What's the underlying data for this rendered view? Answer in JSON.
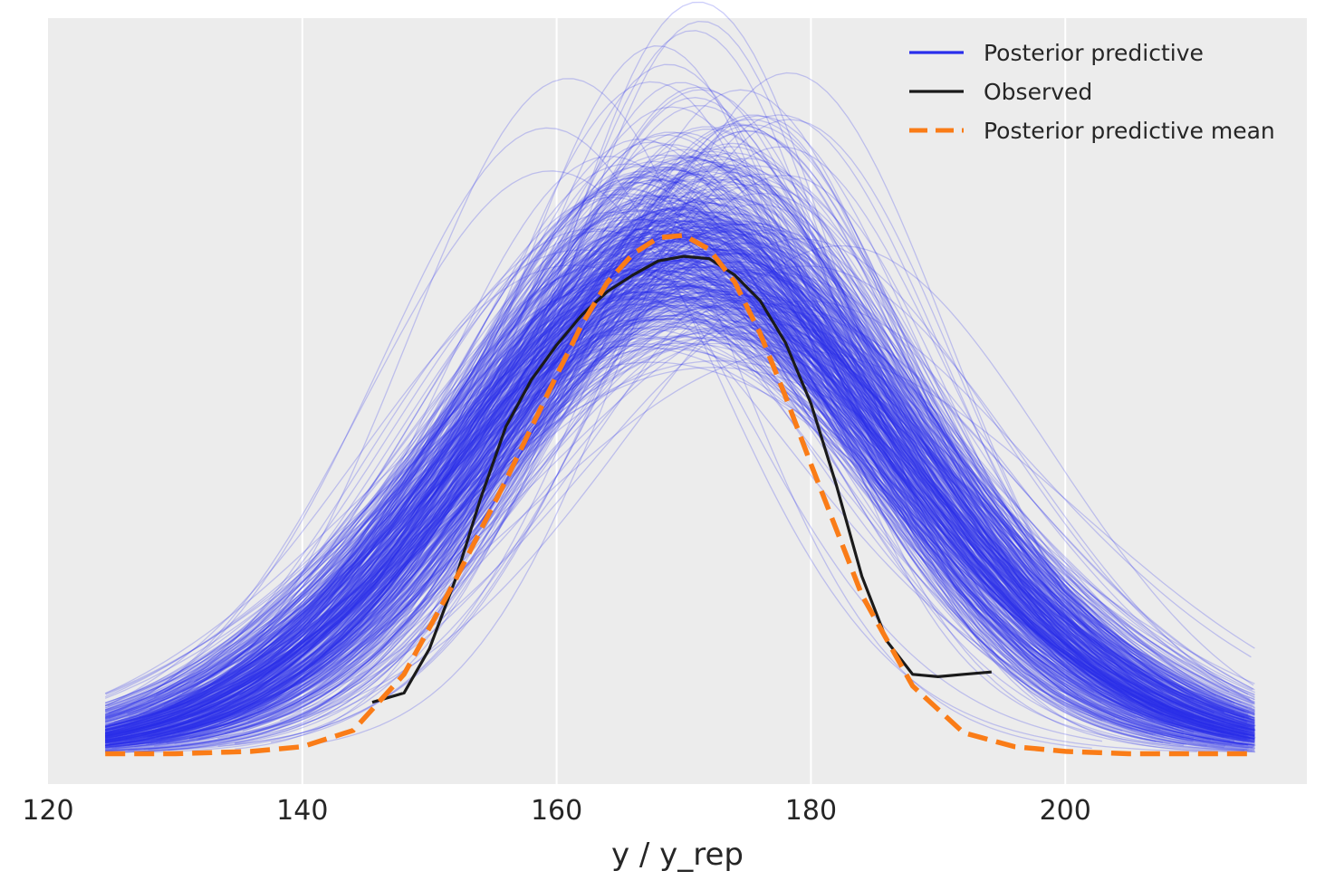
{
  "chart_data": {
    "type": "line",
    "title": "",
    "xlabel": "y / y_rep",
    "ylabel": "",
    "xlim": [
      120,
      219
    ],
    "ylim": [
      -0.0013,
      0.0315
    ],
    "x_ticks": [
      120,
      140,
      160,
      180,
      200
    ],
    "x_tick_labels": [
      "120",
      "140",
      "160",
      "180",
      "200"
    ],
    "y_ticks_visible": false,
    "grid": "vertical gridlines only",
    "background": "#ececec",
    "legend_position": "top-right",
    "legend": [
      {
        "label": "Posterior predictive",
        "style": "solid",
        "color": "#2a2eec"
      },
      {
        "label": "Observed",
        "style": "solid",
        "color": "#1a1a1a"
      },
      {
        "label": "Posterior predictive mean",
        "style": "dashed",
        "color": "#fa7c17"
      }
    ],
    "series": [
      {
        "name": "Posterior predictive",
        "kind": "kde_draws_ensemble",
        "color": "#2a2eec",
        "draws": 500,
        "x_range": [
          124.5,
          215
        ],
        "peak_x_range": [
          164,
          176
        ],
        "peak_density_range": [
          0.018,
          0.029
        ]
      },
      {
        "name": "Observed",
        "color": "#1a1a1a",
        "x": [
          145.5,
          148,
          150,
          152,
          154,
          156,
          158,
          160,
          162,
          164,
          166,
          168,
          170,
          172,
          174,
          176,
          178,
          180,
          182,
          184,
          186,
          188,
          190,
          192,
          194.2
        ],
        "y": [
          0.0022,
          0.0026,
          0.0045,
          0.0074,
          0.0109,
          0.014,
          0.016,
          0.0175,
          0.0188,
          0.0198,
          0.0205,
          0.0211,
          0.0213,
          0.0212,
          0.0205,
          0.0194,
          0.0176,
          0.015,
          0.0115,
          0.0076,
          0.0048,
          0.0034,
          0.0033,
          0.0034,
          0.0035
        ]
      },
      {
        "name": "Posterior predictive mean",
        "color": "#fa7c17",
        "x": [
          124.5,
          130,
          136,
          140,
          144,
          148,
          152,
          156,
          160,
          162,
          164,
          166,
          168,
          170,
          172,
          174,
          176,
          178,
          180,
          184,
          188,
          192,
          196,
          200,
          205,
          210,
          215
        ],
        "y": [
          0.0,
          0.0,
          0.0001,
          0.0003,
          0.001,
          0.0034,
          0.0074,
          0.0117,
          0.0162,
          0.0184,
          0.0202,
          0.0214,
          0.0221,
          0.0222,
          0.0216,
          0.0202,
          0.018,
          0.0153,
          0.0124,
          0.0068,
          0.0029,
          0.0009,
          0.0003,
          0.0001,
          0.0,
          0.0,
          0.0
        ]
      }
    ]
  }
}
